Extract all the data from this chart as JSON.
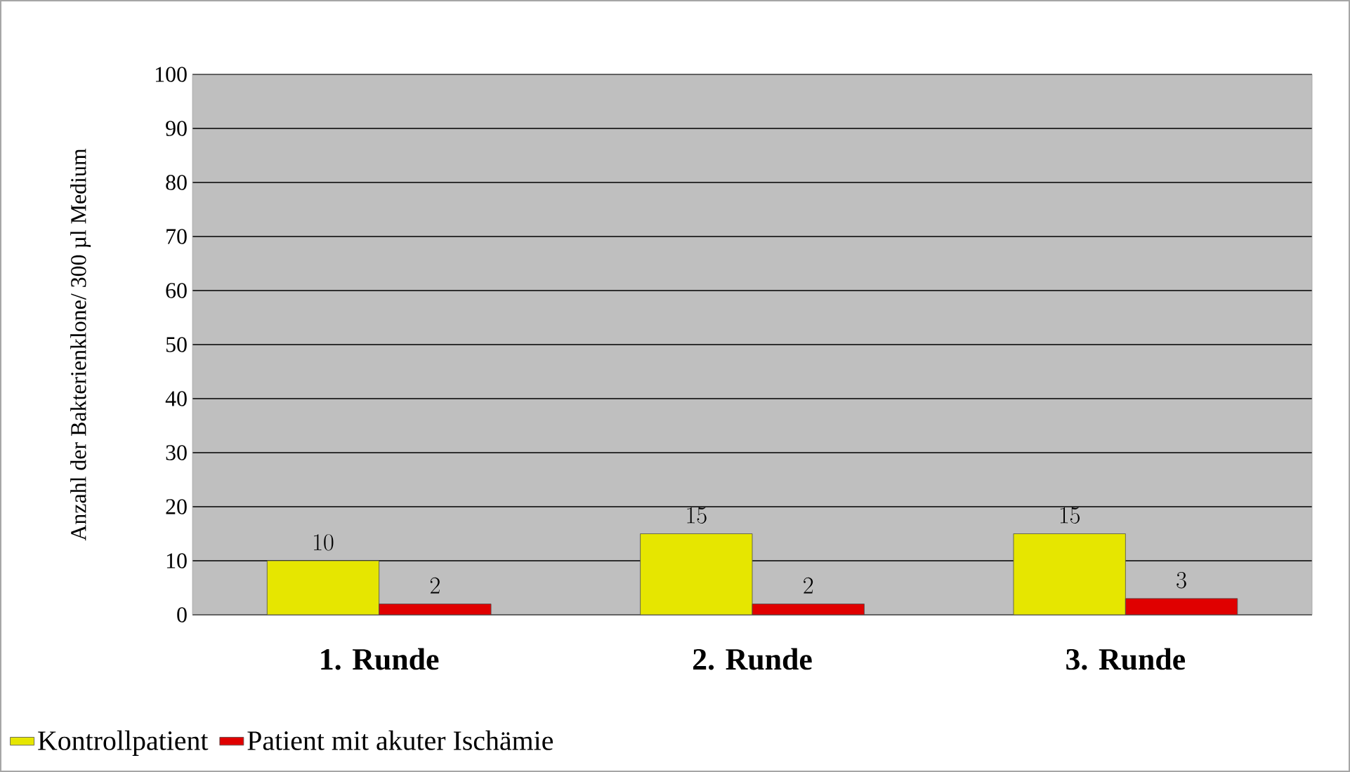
{
  "chart_data": {
    "type": "bar",
    "ylabel": "Anzahl der Bakterienklone/ 300 µl Medium",
    "categories": [
      "1. Runde",
      "2. Runde",
      "3. Runde"
    ],
    "series": [
      {
        "name": "Kontrollpatient",
        "color": "#e6e600",
        "values": [
          10,
          15,
          15
        ]
      },
      {
        "name": "Patient mit akuter Ischämie",
        "color": "#e00000",
        "values": [
          2,
          2,
          3
        ]
      }
    ],
    "ylim": [
      0,
      100
    ],
    "yticks": [
      0,
      10,
      20,
      30,
      40,
      50,
      60,
      70,
      80,
      90,
      100
    ],
    "grid": "y",
    "data_labels": true,
    "legend": "bottom left"
  }
}
